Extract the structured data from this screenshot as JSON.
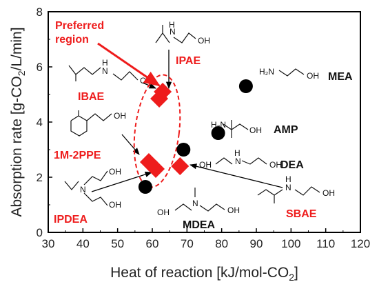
{
  "chart_data": {
    "type": "scatter",
    "xlabel": "Heat of reaction [kJ/mol-CO",
    "xlabel_sub": "2",
    "xlabel_end": "]",
    "ylabel": "Absorption rate [g-CO",
    "ylabel_sub": "2",
    "ylabel_end": "/L/min]",
    "xlim": [
      30,
      120
    ],
    "ylim": [
      0,
      8
    ],
    "x_ticks": [
      "30",
      "40",
      "50",
      "60",
      "70",
      "80",
      "90",
      "100",
      "110",
      "120"
    ],
    "y_ticks": [
      "0",
      "2",
      "4",
      "6",
      "8"
    ],
    "grid": false,
    "series": [
      {
        "marker": "circle",
        "color": "#000000",
        "points": [
          {
            "x": 87,
            "y": 5.3,
            "label": "MEA"
          },
          {
            "x": 79,
            "y": 3.6,
            "label": "AMP"
          },
          {
            "x": 69,
            "y": 3.0,
            "label": "DEA"
          },
          {
            "x": 58,
            "y": 1.65,
            "label": "MDEA"
          }
        ]
      },
      {
        "marker": "diamond",
        "color": "#ee1c1c",
        "points": [
          {
            "x": 63,
            "y": 5.1,
            "label": "IPAE"
          },
          {
            "x": 62,
            "y": 4.85,
            "label": "IBAE"
          },
          {
            "x": 59,
            "y": 2.55,
            "label": "1M-2PPE"
          },
          {
            "x": 61,
            "y": 2.3,
            "label": "IPDEA"
          },
          {
            "x": 68,
            "y": 2.4,
            "label": "SBAE"
          }
        ]
      }
    ],
    "annotations": {
      "preferred_region": "Preferred\nregion",
      "region_color": "#ee1c1c",
      "labels": {
        "IPAE": "IPAE",
        "IBAE": "IBAE",
        "PPE": "1M-2PPE",
        "IPDEA": "IPDEA",
        "SBAE": "SBAE",
        "MEA": "MEA",
        "AMP": "AMP",
        "DEA": "DEA",
        "MDEA": "MDEA"
      },
      "chem_atoms": {
        "NH": "H",
        "N": "N",
        "OH": "OH",
        "H2N": "H₂N"
      }
    }
  }
}
